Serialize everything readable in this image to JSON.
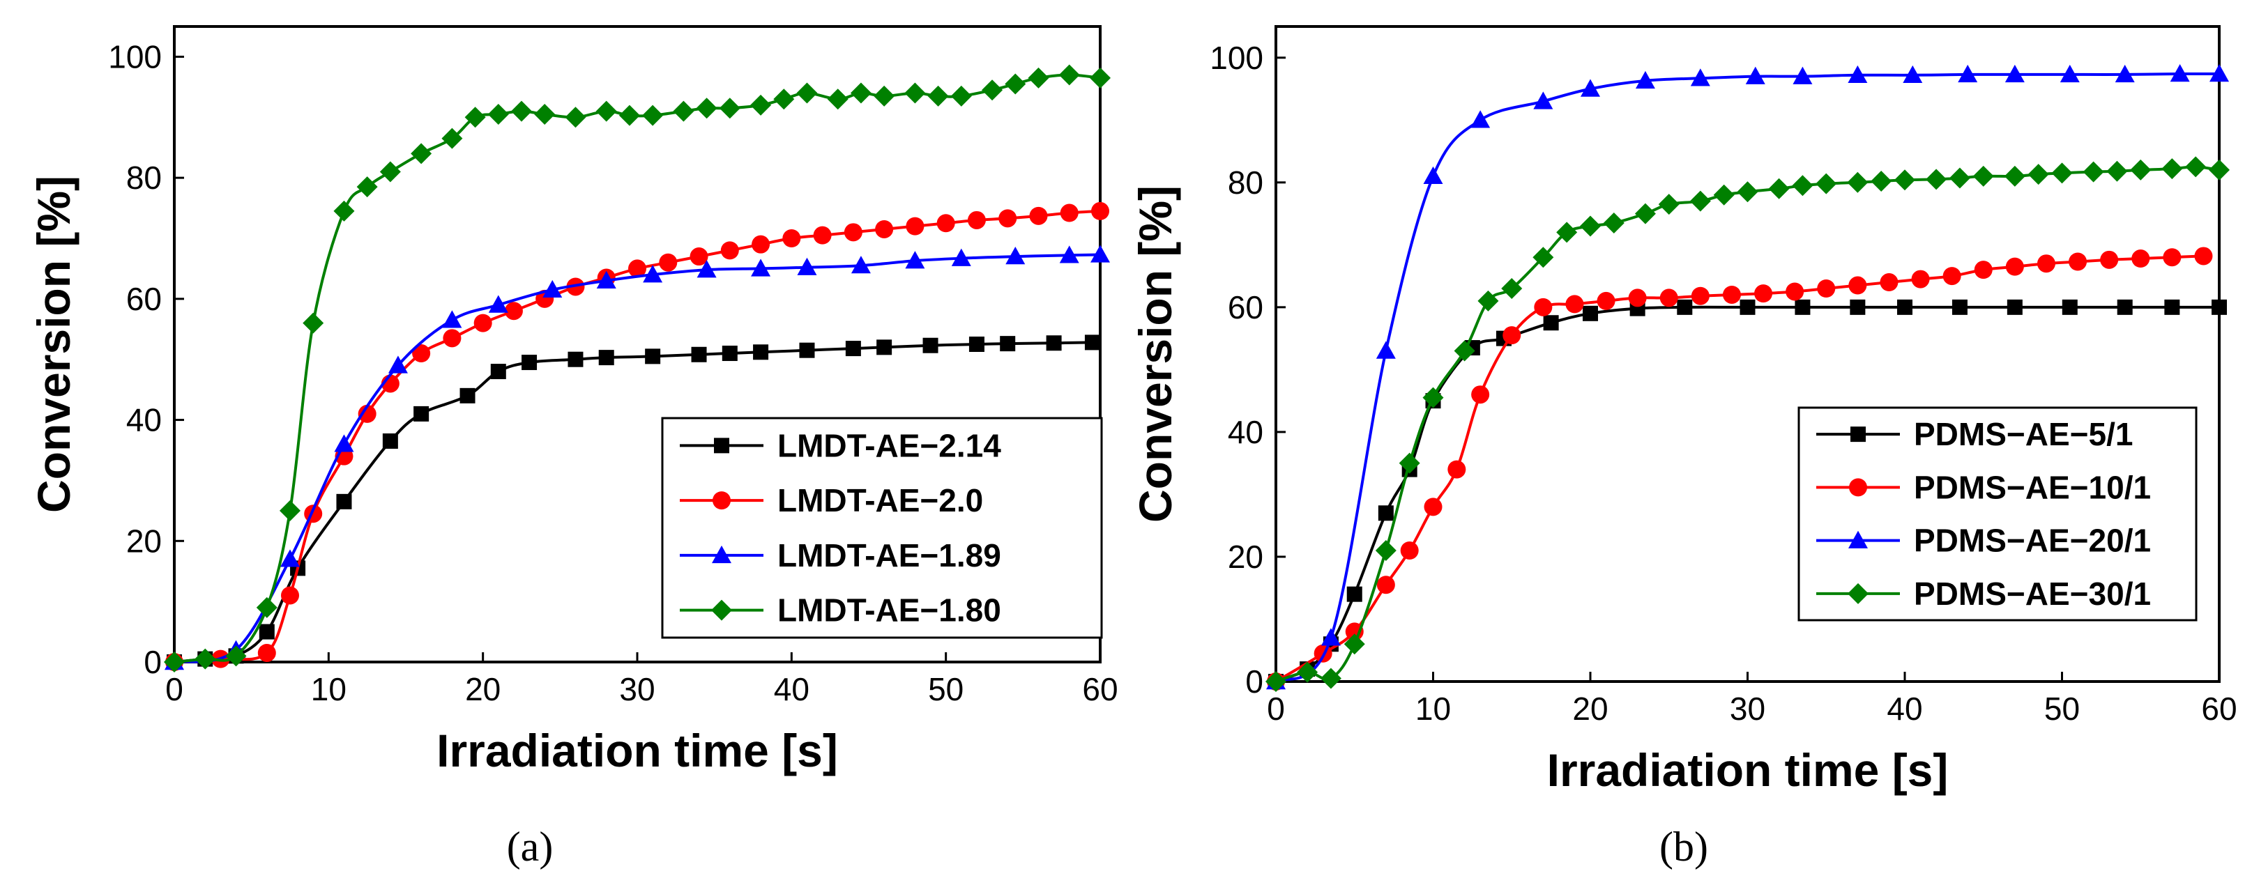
{
  "chart_data": [
    {
      "type": "line",
      "panel_label": "(a)",
      "xlabel": "Irradiation time  [s]",
      "ylabel": "Conversion  [%]",
      "xlim": [
        0,
        60
      ],
      "ylim": [
        0,
        105
      ],
      "xticks": [
        "0",
        "10",
        "20",
        "30",
        "40",
        "50",
        "60"
      ],
      "yticks": [
        "0",
        "20",
        "40",
        "60",
        "80",
        "100"
      ],
      "legend_position": "lower-right",
      "series": [
        {
          "name": "LMDT-AE−2.14",
          "color": "#000000",
          "marker": "square",
          "x": [
            0,
            2,
            4,
            6,
            8,
            11,
            14,
            16,
            19,
            21,
            23,
            26,
            28,
            31,
            34,
            36,
            38,
            41,
            44,
            46,
            49,
            52,
            54,
            57,
            59.5
          ],
          "y": [
            0,
            0.5,
            1,
            5,
            15.5,
            26.5,
            36.5,
            41,
            44,
            48,
            49.5,
            50,
            50.3,
            50.5,
            50.8,
            51,
            51.2,
            51.5,
            51.8,
            52,
            52.3,
            52.5,
            52.6,
            52.7,
            52.8
          ]
        },
        {
          "name": "LMDT-AE−2.0",
          "color": "#ff0000",
          "marker": "circle",
          "x": [
            0,
            3,
            6,
            7.5,
            9,
            11,
            12.5,
            14,
            16,
            18,
            20,
            22,
            24,
            26,
            28,
            30,
            32,
            34,
            36,
            38,
            40,
            42,
            44,
            46,
            48,
            50,
            52,
            54,
            56,
            58,
            60
          ],
          "y": [
            0,
            0.5,
            1.5,
            11,
            24.5,
            34,
            41,
            46,
            51,
            53.5,
            56,
            58,
            60,
            62,
            63.5,
            65,
            66,
            67,
            68,
            69,
            70,
            70.5,
            71,
            71.5,
            72,
            72.5,
            73,
            73.3,
            73.7,
            74.2,
            74.5
          ]
        },
        {
          "name": "LMDT-AE−1.89",
          "color": "#0000ff",
          "marker": "triangle",
          "x": [
            0,
            4,
            7.5,
            11,
            14.5,
            18,
            21,
            24.5,
            28,
            31,
            34.5,
            38,
            41,
            44.5,
            48,
            51,
            54.5,
            58,
            60
          ],
          "y": [
            0,
            2,
            17,
            36,
            49,
            56.5,
            59,
            61.5,
            63,
            64,
            64.8,
            65,
            65.2,
            65.5,
            66.3,
            66.7,
            67,
            67.2,
            67.3
          ]
        },
        {
          "name": "LMDT-AE−1.80",
          "color": "#008000",
          "marker": "diamond",
          "x": [
            0,
            2,
            4,
            6,
            7.5,
            9,
            11,
            12.5,
            14,
            16,
            18,
            19.5,
            21,
            22.5,
            24,
            26,
            28,
            29.5,
            31,
            33,
            34.5,
            36,
            38,
            39.5,
            41,
            43,
            44.5,
            46,
            48,
            49.5,
            51,
            53,
            54.5,
            56,
            58,
            60
          ],
          "y": [
            0,
            0.5,
            1,
            9,
            25,
            56,
            74.5,
            78.5,
            81,
            84,
            86.5,
            90,
            90.5,
            91,
            90.5,
            90,
            91,
            90.3,
            90.3,
            91,
            91.5,
            91.5,
            92,
            93,
            94,
            93,
            94,
            93.5,
            94,
            93.5,
            93.5,
            94.5,
            95.5,
            96.5,
            97,
            96.5
          ]
        }
      ]
    },
    {
      "type": "line",
      "panel_label": "(b)",
      "xlabel": "Irradiation time  [s]",
      "ylabel": "Conversion  [%]",
      "xlim": [
        0,
        60
      ],
      "ylim": [
        0,
        105
      ],
      "xticks": [
        "0",
        "10",
        "20",
        "30",
        "40",
        "50",
        "60"
      ],
      "yticks": [
        "0",
        "20",
        "40",
        "60",
        "80",
        "100"
      ],
      "legend_position": "lower-right",
      "series": [
        {
          "name": "PDMS−AE−5/1",
          "color": "#000000",
          "marker": "square",
          "x": [
            0,
            2,
            3.5,
            5,
            7,
            8.5,
            10,
            12.5,
            14.5,
            17.5,
            20,
            23,
            26,
            30,
            33.5,
            37,
            40,
            43.5,
            47,
            50.5,
            54,
            57,
            60
          ],
          "y": [
            0,
            2,
            6,
            14,
            27,
            34,
            45,
            53.5,
            55,
            57.5,
            59,
            59.8,
            60,
            60,
            60,
            60,
            60,
            60,
            60,
            60,
            60,
            60,
            60
          ]
        },
        {
          "name": "PDMS−AE−10/1",
          "color": "#ff0000",
          "marker": "circle",
          "x": [
            0,
            3,
            5,
            7,
            8.5,
            10,
            11.5,
            13,
            15,
            17,
            19,
            21,
            23,
            25,
            27,
            29,
            31,
            33,
            35,
            37,
            39,
            41,
            43,
            45,
            47,
            49,
            51,
            53,
            55,
            57,
            59
          ],
          "y": [
            0,
            4.5,
            8,
            15.5,
            21,
            28,
            34,
            46,
            55.5,
            60,
            60.5,
            61,
            61.5,
            61.5,
            61.8,
            62,
            62.2,
            62.5,
            63,
            63.5,
            64,
            64.5,
            65,
            66,
            66.5,
            67,
            67.3,
            67.6,
            67.8,
            68,
            68.2
          ]
        },
        {
          "name": "PDMS−AE−20/1",
          "color": "#0000ff",
          "marker": "triangle",
          "x": [
            0,
            3.5,
            7,
            10,
            13,
            17,
            20,
            23.5,
            27,
            30.5,
            33.5,
            37,
            40.5,
            44,
            47,
            50.5,
            54,
            57.5,
            60
          ],
          "y": [
            0,
            7,
            53,
            81,
            90,
            93,
            95,
            96.3,
            96.7,
            97,
            97,
            97.2,
            97.2,
            97.3,
            97.3,
            97.3,
            97.3,
            97.4,
            97.4
          ]
        },
        {
          "name": "PDMS−AE−30/1",
          "color": "#008000",
          "marker": "diamond",
          "x": [
            0,
            2,
            3.5,
            5,
            7,
            8.5,
            10,
            12,
            13.5,
            15,
            17,
            18.5,
            20,
            21.5,
            23.5,
            25,
            27,
            28.5,
            30,
            32,
            33.5,
            35,
            37,
            38.5,
            40,
            42,
            43.5,
            45,
            47,
            48.5,
            50,
            52,
            53.5,
            55,
            57,
            58.5,
            60
          ],
          "y": [
            0,
            1.5,
            0.5,
            6,
            21,
            35,
            45.5,
            53,
            61,
            63,
            68,
            72,
            73,
            73.5,
            75,
            76.5,
            77,
            78,
            78.5,
            79,
            79.5,
            79.8,
            80,
            80.2,
            80.4,
            80.5,
            80.7,
            81,
            81,
            81.3,
            81.5,
            81.7,
            81.8,
            82,
            82.2,
            82.5,
            82
          ]
        }
      ]
    }
  ]
}
